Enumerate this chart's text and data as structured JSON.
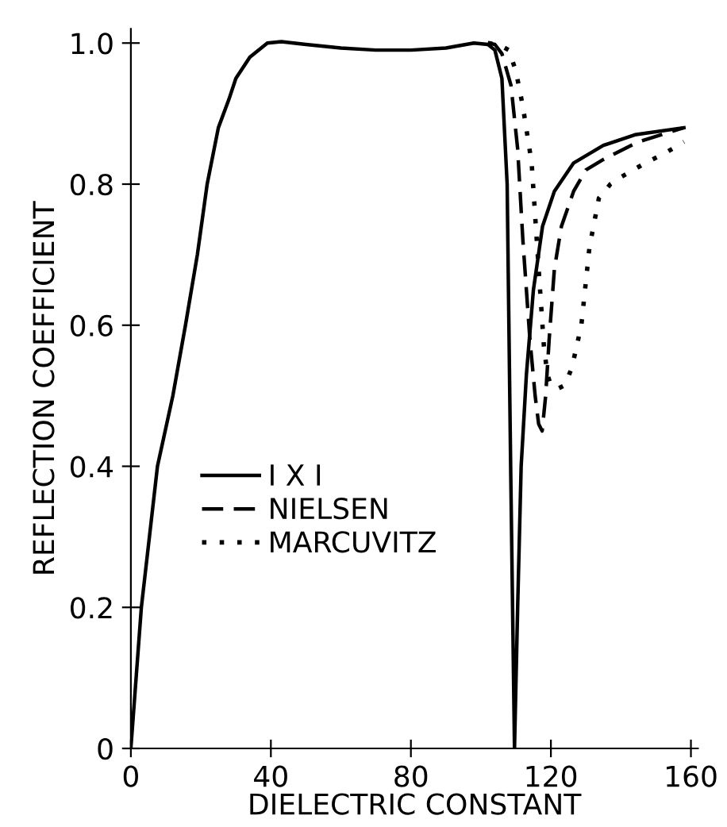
{
  "chart_data": {
    "type": "line",
    "xlabel": "DIELECTRIC CONSTANT",
    "ylabel": "REFLECTION COEFFICIENT",
    "xlim": [
      0,
      162
    ],
    "ylim": [
      0,
      1.02
    ],
    "xticks": [
      0,
      40,
      80,
      120,
      160
    ],
    "yticks": [
      0,
      0.2,
      0.4,
      0.6,
      0.8,
      {
        "value": 1.0,
        "label": "1.0"
      }
    ],
    "grid": false,
    "legend": "left",
    "marker": "none",
    "series": [
      {
        "name": "I X I",
        "color": "#000000",
        "line_style": "solid",
        "x": [
          0,
          1.5,
          3,
          5.3,
          7.6,
          12,
          15.6,
          19,
          21.8,
          25,
          28,
          30,
          34,
          39,
          43,
          50,
          60,
          70,
          80,
          90,
          98,
          102,
          104,
          106,
          107.5,
          108.5,
          109.6,
          110.5,
          111.5,
          113,
          115,
          117.6,
          121,
          126.5,
          135,
          144,
          158
        ],
        "values": [
          0,
          0.1,
          0.2,
          0.3,
          0.4,
          0.5,
          0.6,
          0.7,
          0.8,
          0.88,
          0.92,
          0.95,
          0.98,
          1.0,
          1.002,
          0.998,
          0.993,
          0.99,
          0.99,
          0.993,
          1.0,
          0.998,
          0.99,
          0.95,
          0.8,
          0.4,
          0,
          0.2,
          0.4,
          0.53,
          0.65,
          0.74,
          0.79,
          0.83,
          0.855,
          0.87,
          0.88
        ]
      },
      {
        "name": "NIELSEN",
        "color": "#000000",
        "line_style": "dashed",
        "x": [
          102,
          104,
          106,
          108.6,
          110.5,
          112,
          114,
          115.5,
          116.5,
          117.5,
          118.5,
          119.5,
          121,
          123,
          126.5,
          130,
          135,
          145,
          158
        ],
        "values": [
          1.0,
          0.998,
          0.985,
          0.94,
          0.85,
          0.72,
          0.58,
          0.5,
          0.46,
          0.45,
          0.5,
          0.58,
          0.68,
          0.74,
          0.79,
          0.82,
          0.835,
          0.86,
          0.88
        ]
      },
      {
        "name": "MARCUVITZ",
        "color": "#000000",
        "line_style": "dotted",
        "x": [
          102,
          105,
          108,
          110,
          112,
          114.5,
          116.7,
          118,
          119,
          120,
          122,
          124,
          126,
          128.7,
          131,
          133.7,
          137,
          140,
          147,
          153,
          158
        ],
        "values": [
          1.0,
          0.998,
          0.99,
          0.96,
          0.91,
          0.83,
          0.665,
          0.57,
          0.53,
          0.515,
          0.51,
          0.515,
          0.54,
          0.6,
          0.71,
          0.78,
          0.8,
          0.81,
          0.83,
          0.845,
          0.86
        ]
      }
    ]
  }
}
